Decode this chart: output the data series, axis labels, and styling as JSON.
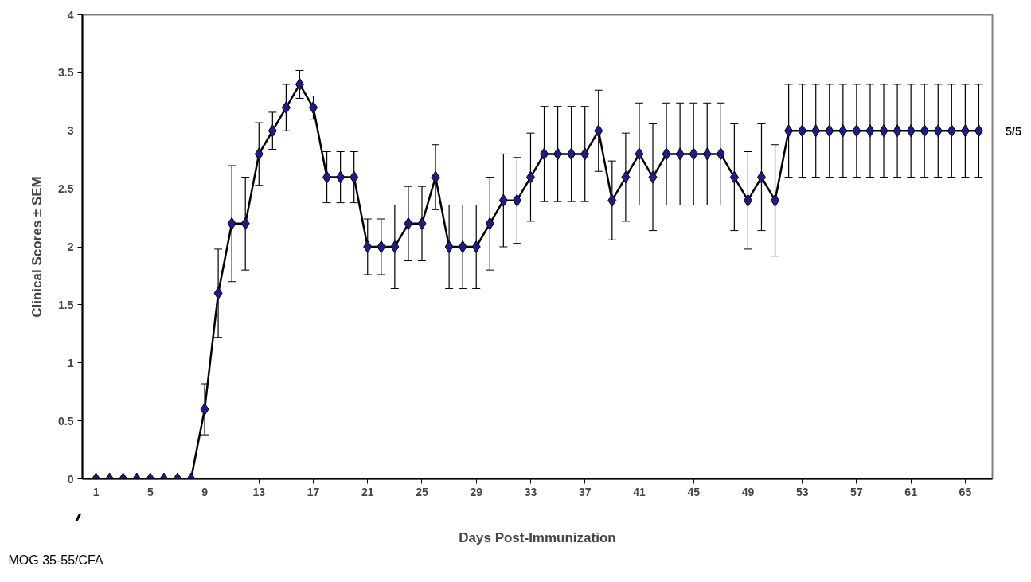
{
  "chart_data": {
    "type": "line",
    "xlabel": "Days Post-Immunization",
    "ylabel": "Clinical Scores ± SEM",
    "x": [
      1,
      2,
      3,
      4,
      5,
      6,
      7,
      8,
      9,
      10,
      11,
      12,
      13,
      14,
      15,
      16,
      17,
      18,
      19,
      20,
      21,
      22,
      23,
      24,
      25,
      26,
      27,
      28,
      29,
      30,
      31,
      32,
      33,
      34,
      35,
      36,
      37,
      38,
      39,
      40,
      41,
      42,
      43,
      44,
      45,
      46,
      47,
      48,
      49,
      50,
      51,
      52,
      53,
      54,
      55,
      56,
      57,
      58,
      59,
      60,
      61,
      62,
      63,
      64,
      65,
      66
    ],
    "series": [
      {
        "color": "#1c1c8e",
        "values": [
          0,
          0,
          0,
          0,
          0,
          0,
          0,
          0,
          0.6,
          1.6,
          2.2,
          2.2,
          2.8,
          3.0,
          3.2,
          3.4,
          3.2,
          2.6,
          2.6,
          2.6,
          2.0,
          2.0,
          2.0,
          2.2,
          2.2,
          2.6,
          2.0,
          2.0,
          2.0,
          2.2,
          2.4,
          2.4,
          2.6,
          2.8,
          2.8,
          2.8,
          2.8,
          3.0,
          2.4,
          2.6,
          2.8,
          2.6,
          2.8,
          2.8,
          2.8,
          2.8,
          2.8,
          2.6,
          2.4,
          2.6,
          2.4,
          3.0,
          3.0,
          3.0,
          3.0,
          3.0,
          3.0,
          3.0,
          3.0,
          3.0,
          3.0,
          3.0,
          3.0,
          3.0,
          3.0,
          3.0
        ],
        "errors": [
          null,
          null,
          null,
          null,
          null,
          null,
          null,
          null,
          0.22,
          0.38,
          0.5,
          0.4,
          0.27,
          0.16,
          0.2,
          0.12,
          0.1,
          0.22,
          0.22,
          0.22,
          0.24,
          0.24,
          0.36,
          0.32,
          0.32,
          0.28,
          0.36,
          0.36,
          0.36,
          0.4,
          0.4,
          0.37,
          0.38,
          0.41,
          0.41,
          0.41,
          0.41,
          0.35,
          0.34,
          0.38,
          0.44,
          0.46,
          0.44,
          0.44,
          0.44,
          0.44,
          0.44,
          0.46,
          0.42,
          0.46,
          0.48,
          0.4,
          0.4,
          0.4,
          0.4,
          0.4,
          0.4,
          0.4,
          0.4,
          0.4,
          0.4,
          0.4,
          0.4,
          0.4,
          0.4,
          0.4
        ]
      }
    ],
    "xlim": [
      0,
      67
    ],
    "xticks": [
      1,
      5,
      9,
      13,
      17,
      21,
      25,
      29,
      33,
      37,
      41,
      45,
      49,
      53,
      57,
      61,
      65
    ],
    "ylim": [
      0,
      4
    ],
    "yticks": [
      0,
      0.5,
      1,
      1.5,
      2,
      2.5,
      3,
      3.5,
      4
    ],
    "marker": "diamond",
    "line_style": "solid",
    "grid": false,
    "annotations": [
      {
        "text": "5/5",
        "x": 66,
        "y": 3
      },
      "MOG 35-55/CFA"
    ]
  }
}
